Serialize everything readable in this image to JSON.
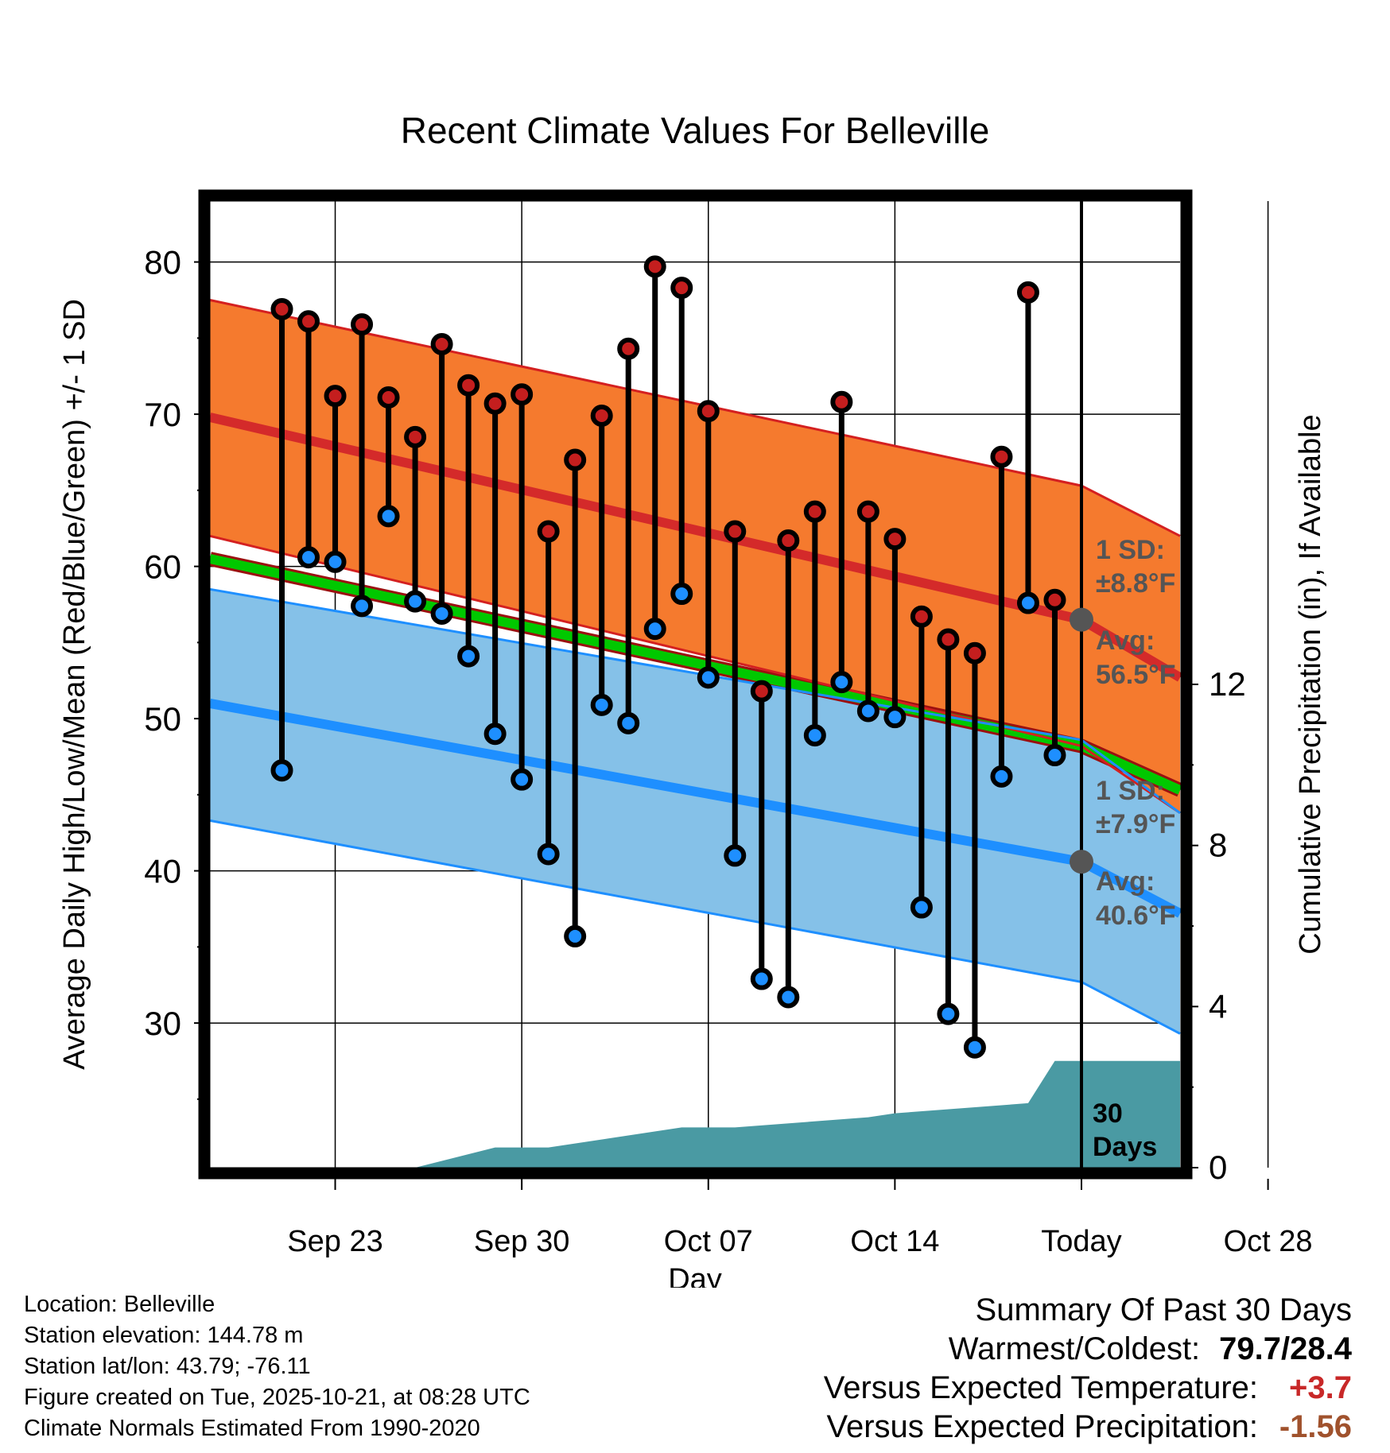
{
  "chart_data": {
    "type": "line",
    "title": "Recent Climate Values For Belleville",
    "xlabel": "Day",
    "ylabel": "Average Daily High/Low/Mean (Red/Blue/Green) +/- 1 SD",
    "y2label": "Cumulative Precipitation (in), If Available",
    "ylim": [
      20.5,
      84
    ],
    "y2lim": [
      0,
      24
    ],
    "xlim": [
      -4.7,
      31.7
    ],
    "x_ticks": [
      {
        "day": 0,
        "label": "Sep 23"
      },
      {
        "day": 7,
        "label": "Sep 30"
      },
      {
        "day": 14,
        "label": "Oct 07"
      },
      {
        "day": 21,
        "label": "Oct 14"
      },
      {
        "day": 28,
        "label": "Today"
      },
      {
        "day": 35,
        "label": "Oct 28"
      }
    ],
    "y_ticks": [
      30,
      40,
      50,
      60,
      70,
      80
    ],
    "y2_ticks": [
      0,
      4,
      8,
      12
    ],
    "normals": {
      "x": [
        -4.7,
        28,
        31.7
      ],
      "high_mean": [
        77.5,
        65.3,
        62
      ],
      "high_lower": [
        62,
        48.2,
        43.8
      ],
      "low_upper": [
        58.5,
        48.6,
        43.8
      ],
      "low_mean": [
        51,
        40.6,
        37.2
      ],
      "low_lower": [
        43.3,
        32.7,
        29.3
      ],
      "avg_mean": [
        60.5,
        48.2,
        45.3
      ],
      "high_center": [
        69.8,
        56.5,
        52.7
      ]
    },
    "daily": {
      "x": [
        -2,
        -1,
        0,
        1,
        2,
        3,
        4,
        5,
        6,
        7,
        8,
        9,
        10,
        11,
        12,
        13,
        14,
        15,
        16,
        17,
        18,
        19,
        20,
        21,
        22,
        23,
        24,
        25,
        26,
        27
      ],
      "high": [
        76.9,
        76.1,
        71.2,
        75.9,
        71.1,
        68.5,
        74.6,
        71.9,
        70.7,
        71.3,
        62.3,
        67.0,
        69.9,
        74.3,
        79.7,
        78.3,
        70.2,
        62.3,
        51.8,
        61.7,
        63.6,
        70.8,
        63.6,
        61.8,
        56.7,
        55.2,
        54.3,
        67.2,
        78.0,
        57.8
      ],
      "low": [
        46.6,
        60.6,
        60.3,
        57.4,
        63.3,
        57.7,
        56.9,
        54.1,
        49.0,
        46.0,
        41.1,
        35.7,
        50.9,
        49.7,
        55.9,
        58.2,
        52.7,
        41.0,
        32.9,
        31.7,
        48.9,
        52.4,
        50.5,
        50.1,
        37.6,
        30.6,
        28.4,
        46.2,
        57.6,
        47.6
      ]
    },
    "precipitation": {
      "x": [
        -4.7,
        3,
        6,
        8,
        13,
        14,
        15,
        20,
        21,
        26,
        27,
        31.7
      ],
      "cumulative": [
        0,
        0,
        0.5,
        0.5,
        1,
        1,
        1,
        1.25,
        1.35,
        1.6,
        2.65,
        2.65
      ]
    },
    "annotations": {
      "high_sd_label": "1 SD:",
      "high_sd_value": "±8.8°F",
      "high_avg_label": "Avg:",
      "high_avg_value": "56.5°F",
      "high_avg_marker": 56.5,
      "low_sd_label": "1 SD:",
      "low_sd_value": "±7.9°F",
      "low_avg_label": "Avg:",
      "low_avg_value": "40.6°F",
      "low_avg_marker": 40.6,
      "days_line1": "30",
      "days_line2": "Days"
    },
    "colors": {
      "high_band": "#f57a2e",
      "high_edge": "#d42020",
      "high_mean": "#d42a2a",
      "low_band": "#85c1e8",
      "low_edge": "#1e8fff",
      "low_mean": "#1e8fff",
      "avg_mean": "#00c800",
      "avg_dark": "#9b1010",
      "precip": "#4a9aa3",
      "high_dot": "#c41e1e",
      "low_dot": "#1e8fff",
      "marker": "#555555",
      "annotation": "#555555"
    }
  },
  "footer": {
    "location": "Location: Belleville",
    "elevation": "Station elevation: 144.78 m",
    "latlon": "Station lat/lon: 43.79; -76.11",
    "created": "Figure created on Tue, 2025-10-21, at 08:28 UTC",
    "normals": "Climate Normals Estimated From 1990-2020"
  },
  "summary": {
    "title": "Summary Of Past 30 Days",
    "warmest_label": "Warmest/Coldest:",
    "warmest_value": "79.7/28.4",
    "temp_label": "Versus Expected Temperature:",
    "temp_value": "+3.7",
    "temp_color": "#c82828",
    "precip_label": "Versus Expected Precipitation:",
    "precip_value": "-1.56",
    "precip_color": "#a0522d"
  }
}
